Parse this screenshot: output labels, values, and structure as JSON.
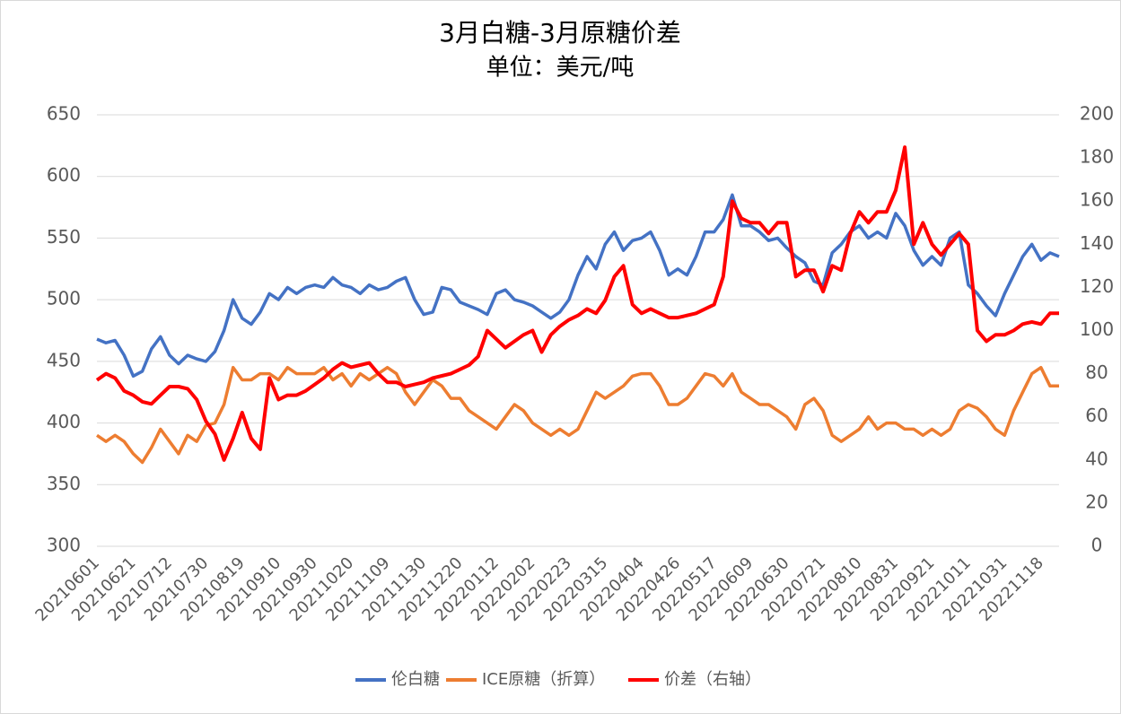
{
  "chart_data": {
    "type": "line",
    "title": "3月白糖-3月原糖价差",
    "subtitle": "单位：美元/吨",
    "categories": [
      "20210601",
      null,
      null,
      null,
      "20210621",
      null,
      null,
      null,
      "20210712",
      null,
      null,
      null,
      "20210730",
      null,
      null,
      null,
      "20210819",
      null,
      null,
      null,
      "20210910",
      null,
      null,
      null,
      "20210930",
      null,
      null,
      null,
      "20211020",
      null,
      null,
      null,
      "20211109",
      null,
      null,
      null,
      "20211130",
      null,
      null,
      null,
      "20211220",
      null,
      null,
      null,
      "20220112",
      null,
      null,
      null,
      "20220202",
      null,
      null,
      null,
      "20220223",
      null,
      null,
      null,
      "20220315",
      null,
      null,
      null,
      "20220404",
      null,
      null,
      null,
      "20220426",
      null,
      null,
      null,
      "20220517",
      null,
      null,
      null,
      "20220609",
      null,
      null,
      null,
      "20220630",
      null,
      null,
      null,
      "20220721",
      null,
      null,
      null,
      "20220810",
      null,
      null,
      null,
      "20220831",
      null,
      null,
      null,
      "20220921",
      null,
      null,
      null,
      "20221011",
      null,
      null,
      null,
      "20221031",
      null,
      null,
      null,
      "20221118",
      null,
      null
    ],
    "series": [
      {
        "name": "伦白糖",
        "color": "#4472c4",
        "values": [
          468,
          465,
          467,
          455,
          438,
          442,
          460,
          470,
          455,
          448,
          455,
          452,
          450,
          458,
          475,
          500,
          485,
          480,
          490,
          505,
          500,
          510,
          505,
          510,
          512,
          510,
          518,
          512,
          510,
          505,
          512,
          508,
          510,
          515,
          518,
          500,
          488,
          490,
          510,
          508,
          498,
          495,
          492,
          488,
          505,
          508,
          500,
          498,
          495,
          490,
          485,
          490,
          500,
          520,
          535,
          525,
          545,
          555,
          540,
          548,
          550,
          555,
          540,
          520,
          525,
          520,
          535,
          555,
          555,
          565,
          585,
          560,
          560,
          555,
          548,
          550,
          542,
          535,
          530,
          515,
          512,
          538,
          545,
          555,
          560,
          550,
          555,
          550,
          570,
          560,
          540,
          528,
          535,
          528,
          550,
          555,
          512,
          505,
          495,
          487,
          505,
          520,
          535,
          545,
          532,
          538,
          535
        ]
      },
      {
        "name": "ICE原糖（折算）",
        "color": "#ed7d31",
        "values": [
          390,
          385,
          390,
          385,
          375,
          368,
          380,
          395,
          385,
          375,
          390,
          385,
          398,
          400,
          415,
          445,
          435,
          435,
          440,
          440,
          435,
          445,
          440,
          440,
          440,
          445,
          435,
          440,
          430,
          440,
          435,
          440,
          445,
          440,
          425,
          415,
          425,
          435,
          430,
          420,
          420,
          410,
          405,
          400,
          395,
          405,
          415,
          410,
          400,
          395,
          390,
          395,
          390,
          395,
          410,
          425,
          420,
          425,
          430,
          438,
          440,
          440,
          430,
          415,
          415,
          420,
          430,
          440,
          438,
          430,
          440,
          425,
          420,
          415,
          415,
          410,
          405,
          395,
          415,
          420,
          410,
          390,
          385,
          390,
          395,
          405,
          395,
          400,
          400,
          395,
          395,
          390,
          395,
          390,
          395,
          410,
          415,
          412,
          405,
          395,
          390,
          410,
          425,
          440,
          445,
          430,
          430
        ]
      },
      {
        "name": "价差（右轴）",
        "color": "#ff0000",
        "axis": "y2",
        "values": [
          77,
          80,
          78,
          72,
          70,
          67,
          66,
          70,
          74,
          74,
          73,
          68,
          58,
          52,
          40,
          50,
          62,
          50,
          45,
          78,
          68,
          70,
          70,
          72,
          75,
          78,
          82,
          85,
          83,
          84,
          85,
          80,
          76,
          76,
          74,
          75,
          76,
          78,
          79,
          80,
          82,
          84,
          88,
          100,
          96,
          92,
          95,
          98,
          100,
          90,
          98,
          102,
          105,
          107,
          110,
          108,
          114,
          125,
          130,
          112,
          108,
          110,
          108,
          106,
          106,
          107,
          108,
          110,
          112,
          125,
          160,
          152,
          150,
          150,
          145,
          150,
          150,
          125,
          128,
          128,
          118,
          130,
          128,
          145,
          155,
          150,
          155,
          155,
          165,
          185,
          140,
          150,
          140,
          135,
          140,
          145,
          140,
          100,
          95,
          98,
          98,
          100,
          103,
          104,
          103,
          108,
          108
        ]
      }
    ],
    "ylim": [
      300,
      650
    ],
    "yticks": [
      300,
      350,
      400,
      450,
      500,
      550,
      600,
      650
    ],
    "y2lim": [
      0,
      200
    ],
    "y2ticks": [
      0,
      20,
      40,
      60,
      80,
      100,
      120,
      140,
      160,
      180,
      200
    ],
    "grid": true,
    "legend": "bottom"
  }
}
